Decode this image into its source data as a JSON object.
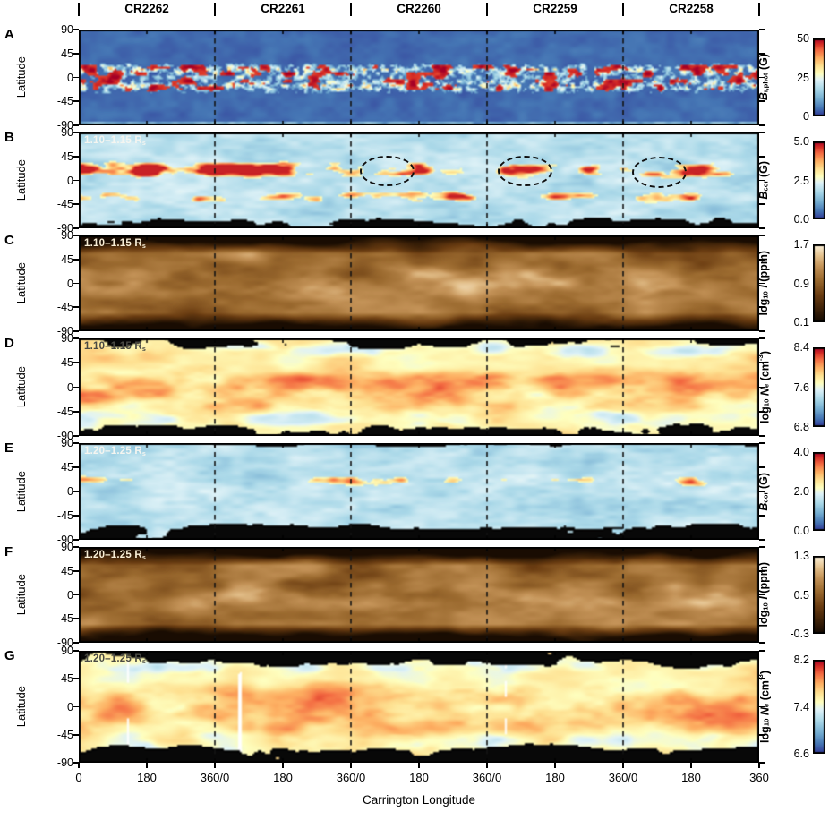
{
  "header": {
    "rotations": [
      "CR2262",
      "CR2261",
      "CR2260",
      "CR2259",
      "CR2258"
    ]
  },
  "x_axis": {
    "title": "Carrington Longitude",
    "ticks": [
      "0",
      "180",
      "360/0",
      "180",
      "360/0",
      "180",
      "360/0",
      "180",
      "360/0",
      "180",
      "360"
    ]
  },
  "y_axis": {
    "title": "Latitude",
    "ticks": [
      "90",
      "45",
      "0",
      "-45",
      "-90"
    ]
  },
  "chart_data": {
    "type": "heatmap",
    "description": "Seven stacked Carrington synoptic maps (panels A-G) of the solar photosphere and corona spanning rotations CR2262 to CR2258; each rotation covers 0-360 degrees longitude, latitude -90 to 90.",
    "panels": [
      {
        "id": "A",
        "letter": "A",
        "quantity": "Photospheric radial magnetic field",
        "inset_label_parts": null,
        "palette": "blue-white-red",
        "colorbar": {
          "ticks_top_to_bottom": [
            "50",
            "25",
            "0"
          ],
          "label_parts": [
            [
              "bi",
              "B"
            ],
            [
              "sub",
              "r,phot"
            ],
            [
              "n",
              " (G)"
            ]
          ]
        },
        "appearance": "dark blue background with fine white speckle and strong red active-region patches concentrated in two latitude belts near +/-15 deg"
      },
      {
        "id": "B",
        "letter": "B",
        "quantity": "Coronal magnetic field strength at 1.10-1.15 solar radii",
        "inset_label_parts": [
          [
            "n",
            "1.10–1.15 R"
          ],
          [
            "sub",
            "s"
          ]
        ],
        "inset_color": "#f5f5f0",
        "palette": "blue-white-red",
        "colorbar": {
          "ticks_top_to_bottom": [
            "5.0",
            "2.5",
            "0.0"
          ],
          "label_parts": [
            [
              "bi",
              "B"
            ],
            [
              "sub",
              "cor"
            ],
            [
              "n",
              " (G)"
            ]
          ]
        },
        "appearance": "pale streaky blue with yellow-orange enhancements at low latitudes and black saturated patches near the south pole; three dashed ellipses mark recurrent enhancements near latitude +20"
      },
      {
        "id": "C",
        "letter": "C",
        "quantity": "Coronal intensity at 1.10-1.15 solar radii",
        "inset_label_parts": [
          [
            "n",
            "1.10–1.15 R"
          ],
          [
            "sub",
            "s"
          ]
        ],
        "inset_color": "#f8eed6",
        "palette": "copper",
        "colorbar": {
          "ticks_top_to_bottom": [
            "1.7",
            "0.9",
            "0.1"
          ],
          "label_parts": [
            [
              "n",
              "log"
            ],
            [
              "sub",
              "10"
            ],
            [
              "bi",
              " I"
            ],
            [
              "n",
              " (ppm)"
            ]
          ]
        },
        "appearance": "copper-brown map, bright cream patches at low latitudes, very dark bands toward both poles"
      },
      {
        "id": "D",
        "letter": "D",
        "quantity": "Coronal electron density at 1.10-1.15 solar radii",
        "inset_label_parts": [
          [
            "n",
            "1.10–1.15 R"
          ],
          [
            "sub",
            "s"
          ]
        ],
        "inset_color": "#4a4a44",
        "palette": "blue-white-red",
        "colorbar": {
          "ticks_top_to_bottom": [
            "8.4",
            "7.6",
            "6.8"
          ],
          "label_parts": [
            [
              "n",
              "log"
            ],
            [
              "sub",
              "10"
            ],
            [
              "bi",
              " N"
            ],
            [
              "sub",
              "e"
            ],
            [
              "n",
              " (cm"
            ],
            [
              "sup",
              "-3"
            ],
            [
              "n",
              ")"
            ]
          ]
        },
        "appearance": "warm cream-orange map with red-orange dense blobs at low latitudes, light blue lanes near the edges, black patches near the south pole and sparse white data gaps"
      },
      {
        "id": "E",
        "letter": "E",
        "quantity": "Coronal magnetic field strength at 1.20-1.25 solar radii",
        "inset_label_parts": [
          [
            "n",
            "1.20–1.25 R"
          ],
          [
            "sub",
            "s"
          ]
        ],
        "inset_color": "#f5f5f0",
        "palette": "blue-white-red",
        "colorbar": {
          "ticks_top_to_bottom": [
            "4.0",
            "2.0",
            "0.0"
          ],
          "label_parts": [
            [
              "bi",
              "B"
            ],
            [
              "sub",
              "cor"
            ],
            [
              "n",
              " (G)"
            ]
          ]
        },
        "appearance": "mostly mid-blue with scattered yellow-orange spots and extensive black saturated patches, especially at southern latitudes"
      },
      {
        "id": "F",
        "letter": "F",
        "quantity": "Coronal intensity at 1.20-1.25 solar radii",
        "inset_label_parts": [
          [
            "n",
            "1.20–1.25 R"
          ],
          [
            "sub",
            "s"
          ]
        ],
        "inset_color": "#f8eed6",
        "palette": "copper",
        "colorbar": {
          "ticks_top_to_bottom": [
            "1.3",
            "0.5",
            "-0.3"
          ],
          "label_parts": [
            [
              "n",
              "log"
            ],
            [
              "sub",
              "10"
            ],
            [
              "bi",
              " I"
            ],
            [
              "n",
              " (ppm)"
            ]
          ]
        },
        "appearance": "darker copper-brown map than panel C with cream bright regions at low latitudes and dark poles"
      },
      {
        "id": "G",
        "letter": "G",
        "quantity": "Coronal electron density at 1.20-1.25 solar radii",
        "inset_label_parts": [
          [
            "n",
            "1.20–1.25 R"
          ],
          [
            "sub",
            "s"
          ]
        ],
        "inset_color": "#4a4a44",
        "palette": "blue-white-red",
        "colorbar": {
          "ticks_top_to_bottom": [
            "8.2",
            "7.4",
            "6.6"
          ],
          "label_parts": [
            [
              "n",
              "log"
            ],
            [
              "sub",
              "10"
            ],
            [
              "bi",
              " N"
            ],
            [
              "sub",
              "e"
            ],
            [
              "n",
              " (cm"
            ],
            [
              "sup",
              "-3"
            ],
            [
              "n",
              ")"
            ]
          ]
        },
        "appearance": "cream-orange map with red-orange blobs, large black patches at both poles and white vertical data-gap stripes within CR2261"
      }
    ],
    "annotations": {
      "panel_B_ellipses": [
        {
          "cr": "CR2260",
          "longitude_deg": 92,
          "latitude_deg": 21,
          "lon_span_deg": 135,
          "lat_span_deg": 52
        },
        {
          "cr": "CR2259",
          "longitude_deg": 97,
          "latitude_deg": 21,
          "lon_span_deg": 135,
          "lat_span_deg": 52
        },
        {
          "cr": "CR2258",
          "longitude_deg": 92,
          "latitude_deg": 18,
          "lon_span_deg": 135,
          "lat_span_deg": 52
        }
      ]
    }
  }
}
